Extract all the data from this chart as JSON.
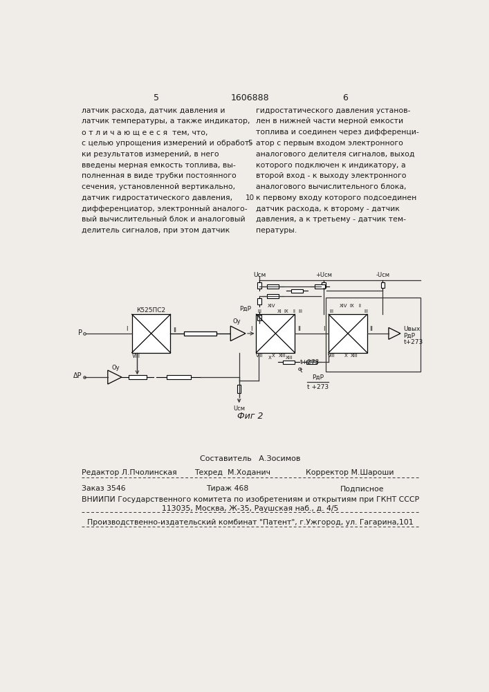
{
  "page_number_left": "5",
  "page_number_center": "1606888",
  "page_number_right": "6",
  "col_left_text": [
    "латчик расхода, датчик давления и",
    "латчик температуры, а также индикатор,",
    "о т л и ч а ю щ е е с я  тем, что,",
    "с целью упрощения измерений и обработ-",
    "ки результатов измерений, в него",
    "введены мерная емкость топлива, вы-",
    "полненная в виде трубки постоянного",
    "сечения, установленной вертикально,",
    "датчик гидростатического давления,",
    "дифференциатор, электронный аналого-",
    "вый вычислительный блок и аналоговый",
    "делитель сигналов, при этом датчик"
  ],
  "col_right_text": [
    "гидростатического давления установ-",
    "лен в нижней части мерной емкости",
    "топлива и соединен через дифференци-",
    "атор с первым входом электронного",
    "аналогового делителя сигналов, выход",
    "которого подключен к индикатору, а",
    "второй вход - к выходу электронного",
    "аналогового вычислительного блока,",
    "к первому входу которого подсоединен",
    "датчик расхода, к второму - датчик",
    "давления, а к третьему - датчик тем-",
    "пературы."
  ],
  "line_number_5": "5",
  "line_number_10": "10",
  "fig_caption": "Фиг 2",
  "footer_composer": "Составитель   А.Зосимов",
  "footer_editor": "Редактор Л.Пчолинская",
  "footer_techred": "Техред  М.Ходанич",
  "footer_corrector": "Корректор М.Шароши",
  "footer_order": "Заказ 3546",
  "footer_tirazh": "Тираж 468",
  "footer_podpisnoe": "Подписное",
  "footer_vniiipi": "ВНИИПИ Государственного комитета по изобретениям и открытиям при ГКНТ СССР",
  "footer_address": "113035, Москва, Ж-35, Раушская наб., д. 4/5",
  "footer_publisher": "Производственно-издательский комбинат \"Патент\", г.Ужгород, ул. Гагарина,101",
  "bg_color": "#f0ede8",
  "text_color": "#1a1a1a",
  "line_color": "#333333"
}
